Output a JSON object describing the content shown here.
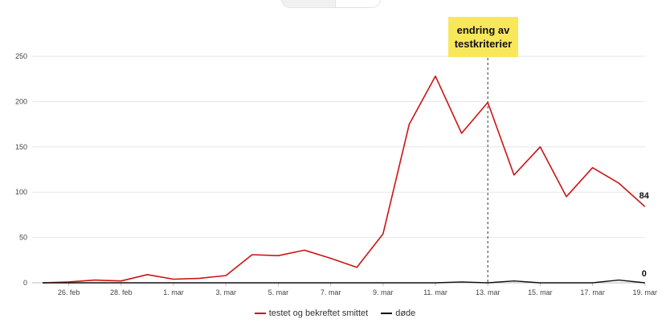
{
  "colors": {
    "series_confirmed": "#cc1414",
    "series_deaths": "#111111",
    "annotation_bg": "#f8e759",
    "grid": "#e6e6e6",
    "axis_text": "#444444"
  },
  "annotation": {
    "text": "endring av\ntestkriterier",
    "x": "13. mar"
  },
  "end_labels": {
    "confirmed": "84",
    "deaths": "0"
  },
  "chart_data": {
    "type": "line",
    "x": [
      "25. feb",
      "26. feb",
      "27. feb",
      "28. feb",
      "29. feb",
      "1. mar",
      "2. mar",
      "3. mar",
      "4. mar",
      "5. mar",
      "6. mar",
      "7. mar",
      "8. mar",
      "9. mar",
      "10. mar",
      "11. mar",
      "12. mar",
      "13. mar",
      "14. mar",
      "15. mar",
      "16. mar",
      "17. mar",
      "18. mar",
      "19. mar"
    ],
    "x_tick_labels": [
      "26. feb",
      "28. feb",
      "1. mar",
      "3. mar",
      "5. mar",
      "7. mar",
      "9. mar",
      "11. mar",
      "13. mar",
      "15. mar",
      "17. mar",
      "19. mar"
    ],
    "y_ticks": [
      0,
      50,
      100,
      150,
      200,
      250
    ],
    "ylim": [
      0,
      250
    ],
    "grid": true,
    "legend_position": "bottom",
    "series": [
      {
        "name": "testet og bekreftet smittet",
        "color": "#cc1414",
        "values": [
          0,
          1,
          3,
          2,
          9,
          4,
          5,
          8,
          31,
          30,
          36,
          27,
          17,
          54,
          175,
          228,
          165,
          199,
          119,
          150,
          95,
          127,
          110,
          84
        ]
      },
      {
        "name": "døde",
        "color": "#111111",
        "values": [
          0,
          0,
          0,
          0,
          0,
          0,
          0,
          0,
          0,
          0,
          0,
          0,
          0,
          0,
          0,
          0,
          1,
          0,
          2,
          0,
          0,
          0,
          3,
          0
        ]
      }
    ]
  }
}
